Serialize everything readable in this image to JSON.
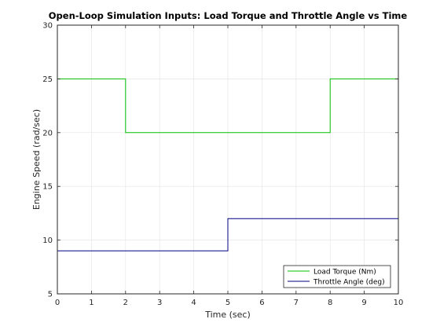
{
  "chart_data": {
    "type": "line",
    "title": "Open-Loop Simulation Inputs: Load Torque and Throttle Angle vs Time",
    "xlabel": "Time (sec)",
    "ylabel": "Engine Speed (rad/sec)",
    "xlim": [
      0,
      10
    ],
    "ylim": [
      5,
      30
    ],
    "x_ticks": [
      0,
      1,
      2,
      3,
      4,
      5,
      6,
      7,
      8,
      9,
      10
    ],
    "y_ticks": [
      5,
      10,
      15,
      20,
      25,
      30
    ],
    "grid": true,
    "legend_position": "bottom-right",
    "series": [
      {
        "name": "Load Torque (Nm)",
        "color": "#00c000",
        "x": [
          0,
          2,
          2,
          8,
          8,
          10
        ],
        "y": [
          25,
          25,
          20,
          20,
          25,
          25
        ]
      },
      {
        "name": "Throttle Angle (deg)",
        "color": "#000080",
        "x": [
          0,
          5,
          5,
          10
        ],
        "y": [
          9,
          9,
          12,
          12
        ]
      }
    ]
  }
}
